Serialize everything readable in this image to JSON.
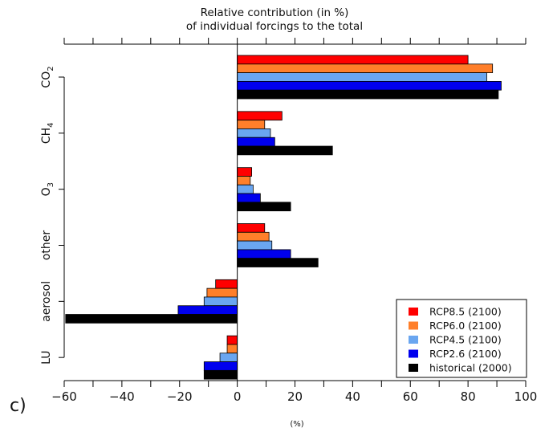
{
  "chart_data": {
    "type": "bar",
    "orientation": "horizontal",
    "title": [
      "Relative contribution (in %)",
      "of individual forcings to the total"
    ],
    "panel_label": "c)",
    "xlabel": "(%)",
    "xlim": [
      -60,
      100
    ],
    "xticks": [
      "−60",
      "−40",
      "−20",
      "0",
      "20",
      "40",
      "60",
      "80",
      "100"
    ],
    "categories": [
      "CO2",
      "CH4",
      "O3",
      "other",
      "aerosol",
      "LU"
    ],
    "category_labels": [
      {
        "base": "CO",
        "sub": "2"
      },
      {
        "base": "CH",
        "sub": "4"
      },
      {
        "base": "O",
        "sub": "3"
      },
      {
        "base": "other",
        "sub": ""
      },
      {
        "base": "aerosol",
        "sub": ""
      },
      {
        "base": "LU",
        "sub": ""
      }
    ],
    "series": [
      {
        "name": "RCP8.5 (2100)",
        "color": "#ff0000",
        "values": [
          80,
          15.5,
          5,
          9.5,
          -7.5,
          -3.5
        ]
      },
      {
        "name": "RCP6.0 (2100)",
        "color": "#ff7f2a",
        "values": [
          88.5,
          9.5,
          4.5,
          11,
          -10.5,
          -3.5
        ]
      },
      {
        "name": "RCP4.5 (2100)",
        "color": "#6aa6f0",
        "values": [
          86.5,
          11.5,
          5.5,
          12,
          -11.5,
          -6
        ]
      },
      {
        "name": "RCP2.6 (2100)",
        "color": "#0000ee",
        "values": [
          91.5,
          13,
          8,
          18.5,
          -20.5,
          -11.5
        ]
      },
      {
        "name": "historical (2000)",
        "color": "#000000",
        "values": [
          90.5,
          33,
          18.5,
          28,
          -59.5,
          -11.5
        ]
      }
    ],
    "legend_position": "bottom-right",
    "grid": false
  }
}
